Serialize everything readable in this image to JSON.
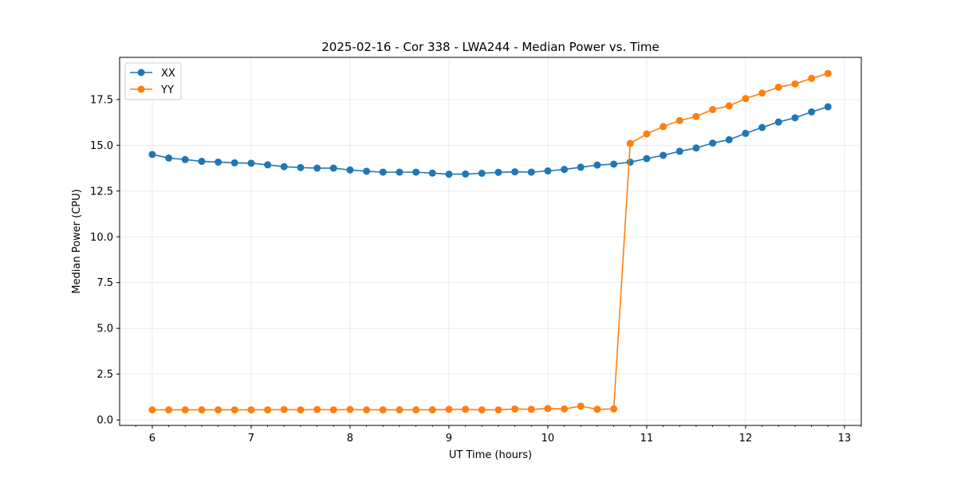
{
  "chart_data": {
    "type": "line",
    "title": "2025-02-16 - Cor 338 - LWA244 - Median Power vs. Time",
    "xlabel": "UT Time (hours)",
    "ylabel": "Median Power (CPU)",
    "xlim": [
      5.67,
      13.17
    ],
    "ylim": [
      -0.3,
      19.8
    ],
    "xticks": [
      6,
      7,
      8,
      9,
      10,
      11,
      12,
      13
    ],
    "xtick_labels": [
      "6",
      "7",
      "8",
      "9",
      "10",
      "11",
      "12",
      "13"
    ],
    "yticks": [
      0,
      2.5,
      5,
      7.5,
      10,
      12.5,
      15,
      17.5
    ],
    "ytick_labels": [
      "0.0",
      "2.5",
      "5.0",
      "7.5",
      "10.0",
      "12.5",
      "15.0",
      "17.5"
    ],
    "grid": true,
    "legend_position": "upper-left",
    "x": [
      6.0,
      6.167,
      6.333,
      6.5,
      6.667,
      6.833,
      7.0,
      7.167,
      7.333,
      7.5,
      7.667,
      7.833,
      8.0,
      8.167,
      8.333,
      8.5,
      8.667,
      8.833,
      9.0,
      9.167,
      9.333,
      9.5,
      9.667,
      9.833,
      10.0,
      10.167,
      10.333,
      10.5,
      10.667,
      10.833,
      11.0,
      11.167,
      11.333,
      11.5,
      11.667,
      11.833,
      12.0,
      12.167,
      12.333,
      12.5,
      12.667,
      12.833
    ],
    "series": [
      {
        "name": "XX",
        "color": "#1f77b4",
        "values": [
          14.5,
          14.3,
          14.22,
          14.12,
          14.08,
          14.04,
          14.02,
          13.93,
          13.83,
          13.78,
          13.75,
          13.75,
          13.65,
          13.58,
          13.53,
          13.53,
          13.53,
          13.48,
          13.42,
          13.43,
          13.47,
          13.52,
          13.55,
          13.53,
          13.6,
          13.68,
          13.8,
          13.92,
          13.97,
          14.08,
          14.27,
          14.45,
          14.67,
          14.85,
          15.12,
          15.3,
          15.65,
          15.97,
          16.27,
          16.5,
          16.82,
          17.1
        ]
      },
      {
        "name": "YY",
        "color": "#ff7f0e",
        "values": [
          0.55,
          0.55,
          0.55,
          0.55,
          0.55,
          0.55,
          0.55,
          0.55,
          0.57,
          0.55,
          0.57,
          0.55,
          0.57,
          0.55,
          0.55,
          0.55,
          0.55,
          0.55,
          0.58,
          0.58,
          0.55,
          0.55,
          0.6,
          0.58,
          0.62,
          0.6,
          0.75,
          0.58,
          0.6,
          15.1,
          15.62,
          16.02,
          16.35,
          16.57,
          16.95,
          17.15,
          17.55,
          17.85,
          18.17,
          18.35,
          18.65,
          18.92
        ]
      }
    ]
  }
}
